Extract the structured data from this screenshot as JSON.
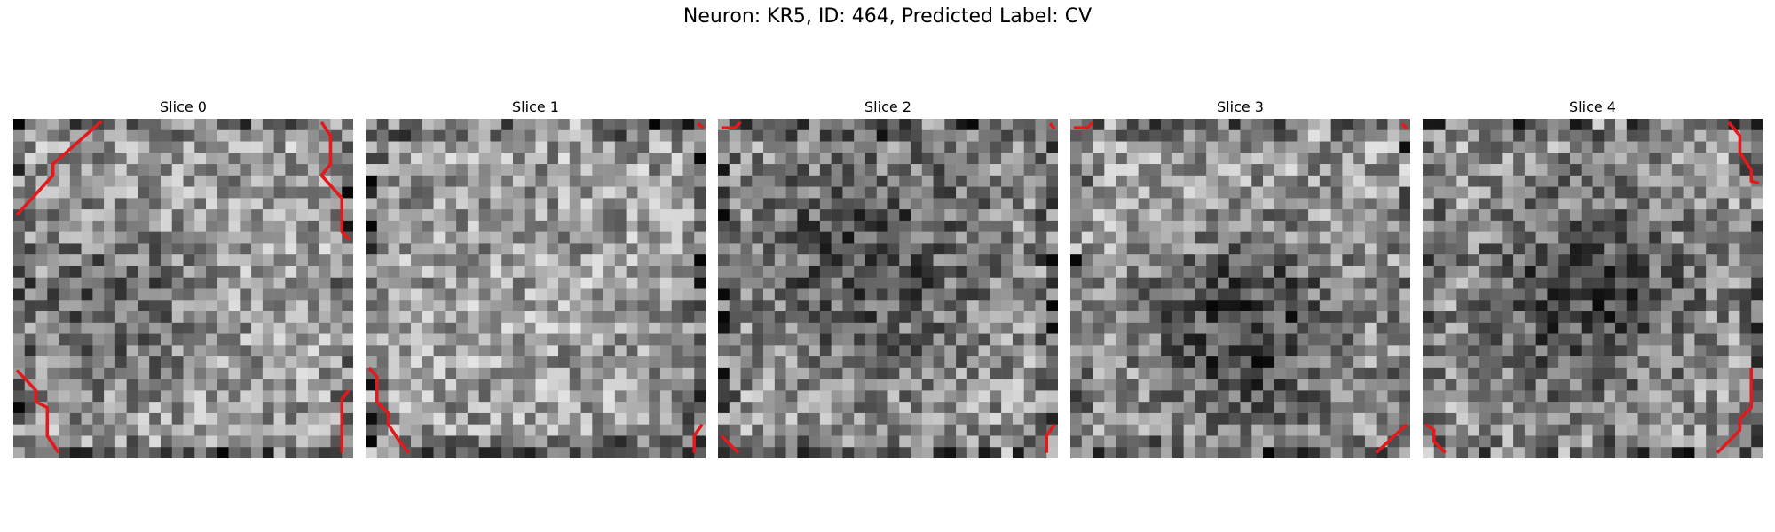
{
  "figure": {
    "title": "Neuron: KR5, ID: 464, Predicted Label: CV"
  },
  "panels": [
    {
      "title": "Slice 0",
      "seed": 11
    },
    {
      "title": "Slice 1",
      "seed": 23
    },
    {
      "title": "Slice 2",
      "seed": 37
    },
    {
      "title": "Slice 3",
      "seed": 53
    },
    {
      "title": "Slice 4",
      "seed": 71
    }
  ],
  "colors": {
    "contour": "#e31a1c",
    "colormap": "gray"
  }
}
